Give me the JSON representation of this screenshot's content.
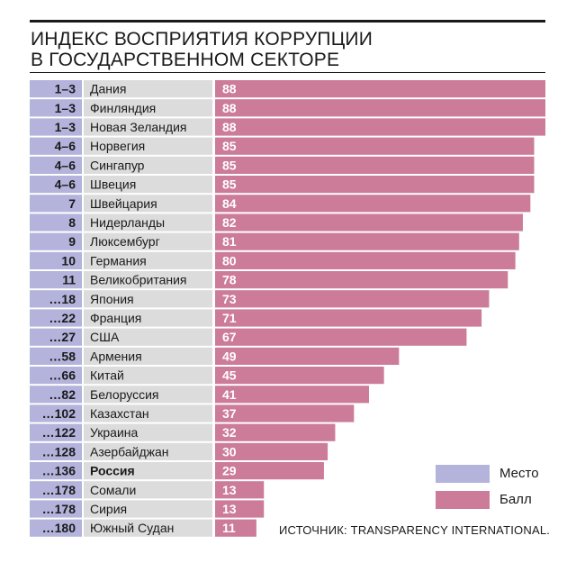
{
  "header": {
    "title_line1": "ИНДЕКС ВОСПРИЯТИЯ КОРРУПЦИИ",
    "title_line2": "В ГОСУДАРСТВЕННОМ СЕКТОРЕ"
  },
  "legend": {
    "rank_label": "Место",
    "score_label": "Балл"
  },
  "source": "ИСТОЧНИК: TRANSPARENCY INTERNATIONAL.",
  "colors": {
    "rank": "#b3b3dc",
    "country": "#dcdcdc",
    "score": "#cc7c98"
  },
  "chart_data": {
    "type": "bar",
    "orientation": "horizontal",
    "title": "ИНДЕКС ВОСПРИЯТИЯ КОРРУПЦИИ В ГОСУДАРСТВЕННОМ СЕКТОРЕ",
    "highlight": "Россия",
    "rows": [
      {
        "rank": "1–3",
        "country": "Дания",
        "score": 88
      },
      {
        "rank": "1–3",
        "country": "Финляндия",
        "score": 88
      },
      {
        "rank": "1–3",
        "country": "Новая Зеландия",
        "score": 88
      },
      {
        "rank": "4–6",
        "country": "Норвегия",
        "score": 85
      },
      {
        "rank": "4–6",
        "country": "Сингапур",
        "score": 85
      },
      {
        "rank": "4–6",
        "country": "Швеция",
        "score": 85
      },
      {
        "rank": "7",
        "country": "Швейцария",
        "score": 84
      },
      {
        "rank": "8",
        "country": "Нидерланды",
        "score": 82
      },
      {
        "rank": "9",
        "country": "Люксембург",
        "score": 81
      },
      {
        "rank": "10",
        "country": "Германия",
        "score": 80
      },
      {
        "rank": "11",
        "country": "Великобритания",
        "score": 78
      },
      {
        "rank": "…18",
        "country": "Япония",
        "score": 73
      },
      {
        "rank": "…22",
        "country": "Франция",
        "score": 71
      },
      {
        "rank": "…27",
        "country": "США",
        "score": 67
      },
      {
        "rank": "…58",
        "country": "Армения",
        "score": 49
      },
      {
        "rank": "…66",
        "country": "Китай",
        "score": 45
      },
      {
        "rank": "…82",
        "country": "Белоруссия",
        "score": 41
      },
      {
        "rank": "…102",
        "country": "Казахстан",
        "score": 37
      },
      {
        "rank": "…122",
        "country": "Украина",
        "score": 32
      },
      {
        "rank": "…128",
        "country": "Азербайджан",
        "score": 30
      },
      {
        "rank": "…136",
        "country": "Россия",
        "score": 29
      },
      {
        "rank": "…178",
        "country": "Сомали",
        "score": 13
      },
      {
        "rank": "…178",
        "country": "Сирия",
        "score": 13
      },
      {
        "rank": "…180",
        "country": "Южный Судан",
        "score": 11
      }
    ]
  }
}
